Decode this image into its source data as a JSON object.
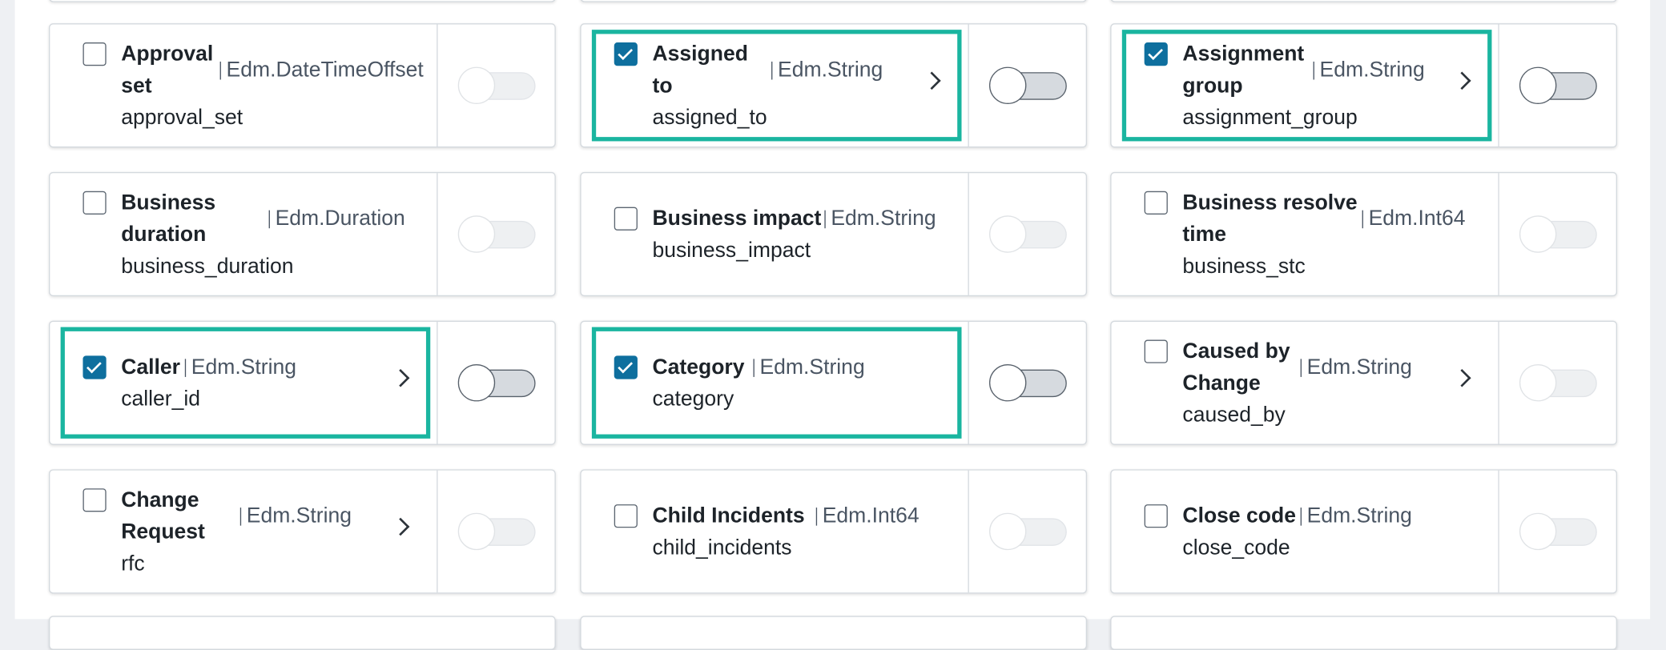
{
  "cards": [
    {
      "label": "Approval set",
      "type": "Edm.DateTimeOffset",
      "field": "approval_set",
      "checked": false,
      "chevron": false
    },
    {
      "label": "Assigned to",
      "type": "Edm.String",
      "field": "assigned_to",
      "checked": true,
      "chevron": true
    },
    {
      "label": "Assignment group",
      "type": "Edm.String",
      "field": "assignment_group",
      "checked": true,
      "chevron": true
    },
    {
      "label": "Business duration",
      "type": "Edm.Duration",
      "field": "business_duration",
      "checked": false,
      "chevron": false
    },
    {
      "label": "Business impact",
      "type": "Edm.String",
      "field": "business_impact",
      "checked": false,
      "chevron": false
    },
    {
      "label": "Business resolve time",
      "type": "Edm.Int64",
      "field": "business_stc",
      "checked": false,
      "chevron": false
    },
    {
      "label": "Caller",
      "type": "Edm.String",
      "field": "caller_id",
      "checked": true,
      "chevron": true
    },
    {
      "label": "Category",
      "type": "Edm.String",
      "field": "category",
      "checked": true,
      "chevron": false
    },
    {
      "label": "Caused by Change",
      "type": "Edm.String",
      "field": "caused_by",
      "checked": false,
      "chevron": true
    },
    {
      "label": "Change Request",
      "type": "Edm.String",
      "field": "rfc",
      "checked": false,
      "chevron": true
    },
    {
      "label": "Child Incidents",
      "type": "Edm.Int64",
      "field": "child_incidents",
      "checked": false,
      "chevron": false
    },
    {
      "label": "Close code",
      "type": "Edm.String",
      "field": "close_code",
      "checked": false,
      "chevron": false
    }
  ]
}
